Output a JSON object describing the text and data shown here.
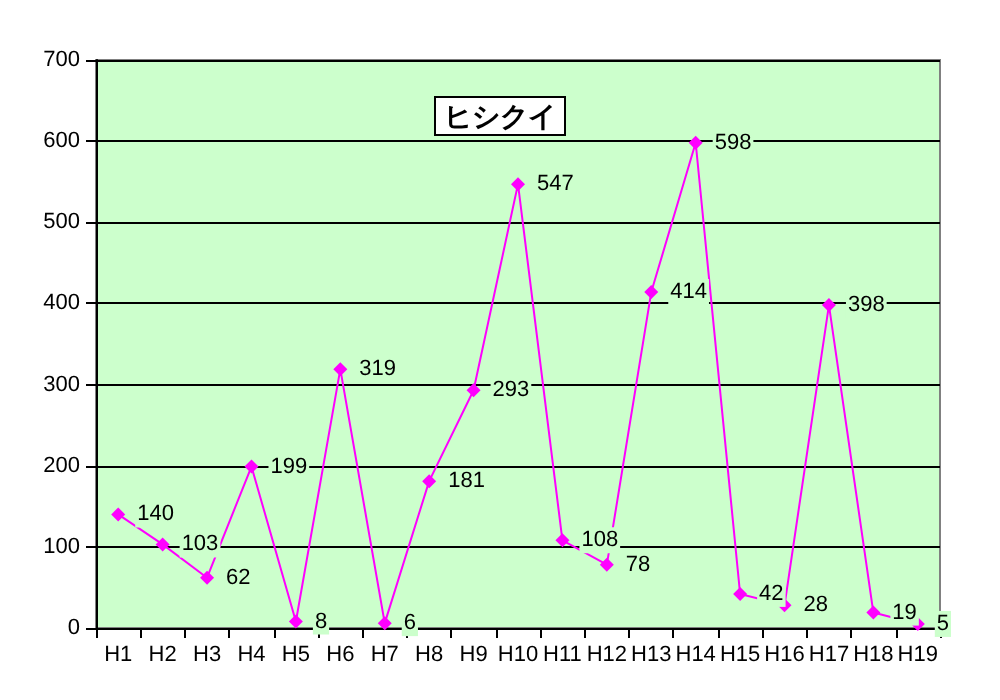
{
  "chart_data": {
    "type": "line",
    "title": "ヒシクイ",
    "categories": [
      "H1",
      "H2",
      "H3",
      "H4",
      "H5",
      "H6",
      "H7",
      "H8",
      "H9",
      "H10",
      "H11",
      "H12",
      "H13",
      "H14",
      "H15",
      "H16",
      "H17",
      "H18",
      "H19"
    ],
    "series": [
      {
        "color": "#ff00ff",
        "values": [
          140,
          103,
          62,
          199,
          8,
          319,
          6,
          181,
          293,
          547,
          108,
          78,
          414,
          598,
          42,
          28,
          398,
          19,
          5
        ]
      }
    ],
    "ylim": [
      0,
      700
    ],
    "yticks": [
      0,
      100,
      200,
      300,
      400,
      500,
      600,
      700
    ],
    "grid": "y",
    "data_labels": true,
    "marker": "diamond",
    "line_style": "solid"
  }
}
